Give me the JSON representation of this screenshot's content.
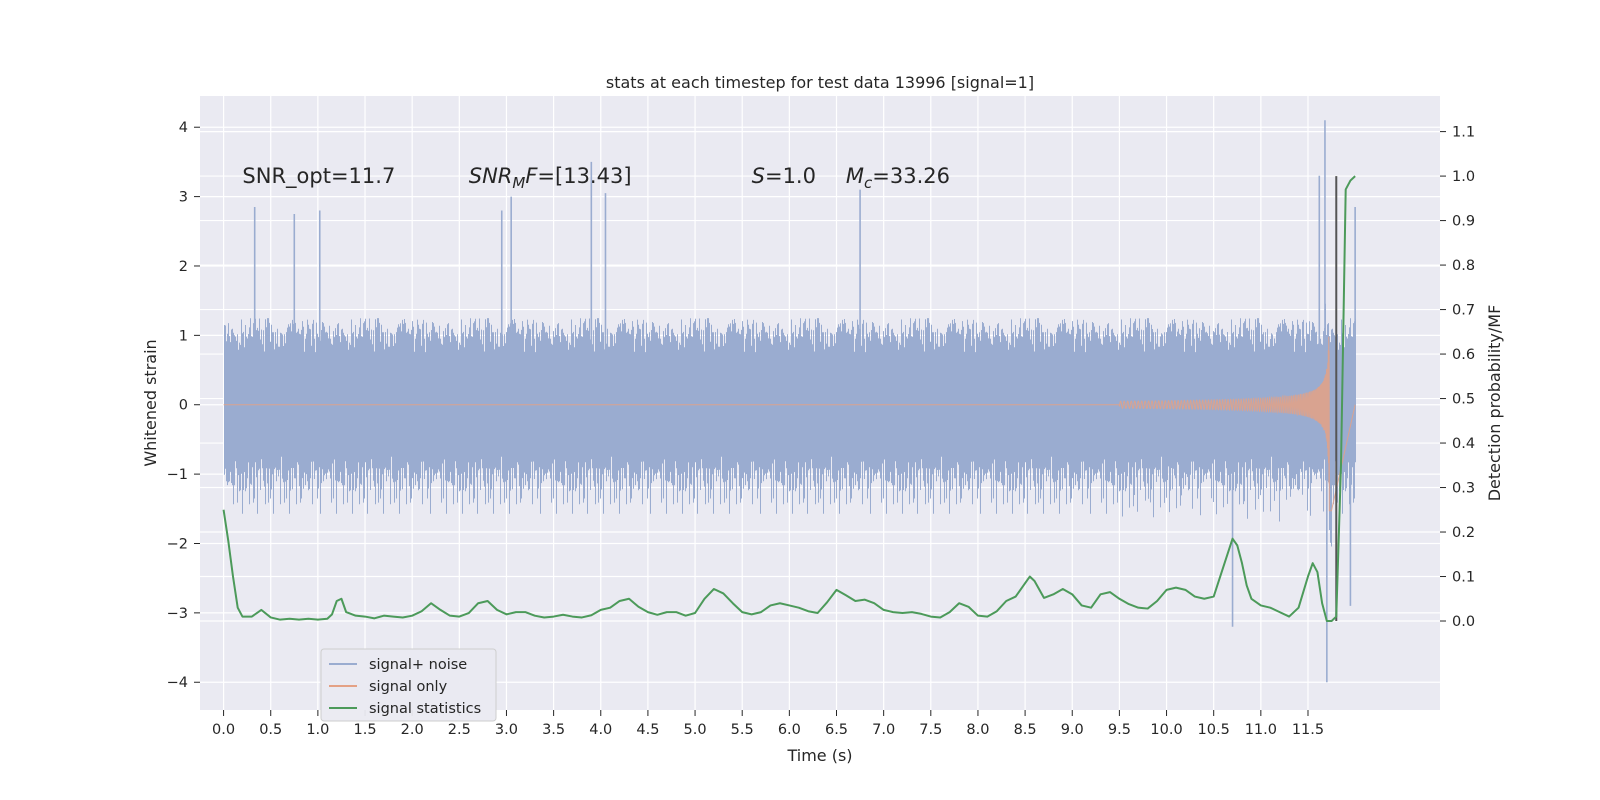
{
  "chart_data": {
    "type": "line",
    "title": "stats at each timestep for test data 13996 [signal=1]",
    "xlabel": "Time (s)",
    "ylabel_left": "Whitened strain",
    "ylabel_right": "Detection probability/MF",
    "xlim": [
      -0.25,
      12.9
    ],
    "ylim_left": [
      -4.4,
      4.45
    ],
    "ylim_right": [
      -0.2,
      1.18
    ],
    "xticks": [
      0.0,
      0.5,
      1.0,
      1.5,
      2.0,
      2.5,
      3.0,
      3.5,
      4.0,
      4.5,
      5.0,
      5.5,
      6.0,
      6.5,
      7.0,
      7.5,
      8.0,
      8.5,
      9.0,
      9.5,
      10.0,
      10.5,
      11.0,
      11.5
    ],
    "xtick_labels": [
      "0.0",
      "0.5",
      "1.0",
      "1.5",
      "2.0",
      "2.5",
      "3.0",
      "3.5",
      "4.0",
      "4.5",
      "5.0",
      "5.5",
      "6.0",
      "6.5",
      "7.0",
      "7.5",
      "8.0",
      "8.5",
      "9.0",
      "9.5",
      "10.0",
      "10.5",
      "11.0",
      "11.5"
    ],
    "yticks_left": [
      -4,
      -3,
      -2,
      -1,
      0,
      1,
      2,
      3,
      4
    ],
    "ytick_labels_left": [
      "−4",
      "−3",
      "−2",
      "−1",
      "0",
      "1",
      "2",
      "3",
      "4"
    ],
    "yticks_right": [
      0.0,
      0.1,
      0.2,
      0.3,
      0.4,
      0.5,
      0.6,
      0.7,
      0.8,
      0.9,
      1.0,
      1.1
    ],
    "ytick_labels_right": [
      "0.0",
      "0.1",
      "0.2",
      "0.3",
      "0.4",
      "0.5",
      "0.6",
      "0.7",
      "0.8",
      "0.9",
      "1.0",
      "1.1"
    ],
    "grid": true,
    "legend_position": "lower-left",
    "annotations": [
      {
        "text": "SNR_opt=11.7",
        "x": 0.2,
        "y": 3.3
      },
      {
        "text": "SNR_MF=[13.43]",
        "x": 2.6,
        "y": 3.3
      },
      {
        "text": "S=1.0",
        "x": 5.6,
        "y": 3.3
      },
      {
        "text": "M_c=33.26",
        "x": 6.6,
        "y": 3.3
      }
    ],
    "vertical_line": {
      "x": 11.8,
      "y_right": [
        0.0,
        1.0
      ],
      "color": "#555555"
    },
    "series": [
      {
        "name": "signal+ noise",
        "axis": "left",
        "color": "#9aacd0",
        "t_start": 0.0,
        "t_end": 12.0,
        "noise_sigma": 1.0,
        "envelope_positive_typical": 1.9,
        "envelope_negative_typical": -1.8,
        "spikes": [
          {
            "x": 0.33,
            "y": 2.85
          },
          {
            "x": 0.75,
            "y": 2.75
          },
          {
            "x": 1.02,
            "y": 2.8
          },
          {
            "x": 2.95,
            "y": 2.8
          },
          {
            "x": 3.05,
            "y": 3.0
          },
          {
            "x": 3.9,
            "y": 3.5
          },
          {
            "x": 4.05,
            "y": 3.05
          },
          {
            "x": 6.75,
            "y": 3.1
          },
          {
            "x": 10.7,
            "y": -3.2
          },
          {
            "x": 11.62,
            "y": 3.3
          },
          {
            "x": 11.68,
            "y": 4.1
          },
          {
            "x": 11.7,
            "y": -4.0
          },
          {
            "x": 11.95,
            "y": -2.9
          },
          {
            "x": 12.0,
            "y": 2.85
          }
        ]
      },
      {
        "name": "signal only",
        "axis": "left",
        "color": "#e4a185",
        "chirp_start": 9.5,
        "merger_time": 11.73,
        "peak_amplitude": 2.5
      },
      {
        "name": "signal statistics",
        "axis": "right",
        "color": "#4c9a5a",
        "x": [
          0.0,
          0.05,
          0.1,
          0.15,
          0.2,
          0.3,
          0.4,
          0.5,
          0.6,
          0.7,
          0.8,
          0.9,
          1.0,
          1.1,
          1.15,
          1.2,
          1.25,
          1.3,
          1.4,
          1.5,
          1.6,
          1.7,
          1.8,
          1.9,
          2.0,
          2.1,
          2.2,
          2.3,
          2.4,
          2.5,
          2.6,
          2.7,
          2.8,
          2.9,
          3.0,
          3.1,
          3.2,
          3.3,
          3.4,
          3.5,
          3.6,
          3.7,
          3.8,
          3.9,
          4.0,
          4.1,
          4.2,
          4.3,
          4.4,
          4.5,
          4.6,
          4.7,
          4.8,
          4.9,
          5.0,
          5.1,
          5.2,
          5.3,
          5.4,
          5.5,
          5.6,
          5.7,
          5.8,
          5.9,
          6.0,
          6.1,
          6.2,
          6.3,
          6.4,
          6.5,
          6.6,
          6.7,
          6.8,
          6.9,
          7.0,
          7.1,
          7.2,
          7.3,
          7.4,
          7.5,
          7.6,
          7.7,
          7.8,
          7.9,
          8.0,
          8.1,
          8.2,
          8.3,
          8.4,
          8.5,
          8.55,
          8.6,
          8.7,
          8.8,
          8.9,
          9.0,
          9.1,
          9.2,
          9.3,
          9.4,
          9.5,
          9.6,
          9.7,
          9.8,
          9.9,
          10.0,
          10.1,
          10.2,
          10.3,
          10.4,
          10.5,
          10.6,
          10.7,
          10.75,
          10.8,
          10.85,
          10.9,
          11.0,
          11.1,
          11.2,
          11.3,
          11.4,
          11.5,
          11.55,
          11.6,
          11.65,
          11.7,
          11.75,
          11.8,
          11.85,
          11.9,
          11.95,
          12.0
        ],
        "y": [
          0.25,
          0.18,
          0.1,
          0.03,
          0.01,
          0.01,
          0.025,
          0.008,
          0.003,
          0.005,
          0.003,
          0.005,
          0.003,
          0.005,
          0.015,
          0.045,
          0.05,
          0.02,
          0.012,
          0.01,
          0.006,
          0.012,
          0.01,
          0.008,
          0.012,
          0.022,
          0.04,
          0.025,
          0.012,
          0.01,
          0.018,
          0.04,
          0.045,
          0.025,
          0.015,
          0.02,
          0.02,
          0.012,
          0.008,
          0.01,
          0.014,
          0.01,
          0.008,
          0.013,
          0.025,
          0.03,
          0.045,
          0.05,
          0.032,
          0.02,
          0.014,
          0.02,
          0.02,
          0.012,
          0.018,
          0.05,
          0.072,
          0.062,
          0.04,
          0.02,
          0.015,
          0.02,
          0.035,
          0.04,
          0.035,
          0.03,
          0.022,
          0.018,
          0.042,
          0.07,
          0.058,
          0.045,
          0.048,
          0.04,
          0.025,
          0.02,
          0.018,
          0.02,
          0.016,
          0.01,
          0.008,
          0.02,
          0.04,
          0.032,
          0.012,
          0.01,
          0.022,
          0.045,
          0.055,
          0.085,
          0.1,
          0.09,
          0.052,
          0.06,
          0.072,
          0.06,
          0.035,
          0.03,
          0.06,
          0.065,
          0.05,
          0.038,
          0.03,
          0.028,
          0.045,
          0.07,
          0.075,
          0.07,
          0.055,
          0.05,
          0.055,
          0.12,
          0.185,
          0.17,
          0.13,
          0.08,
          0.05,
          0.035,
          0.03,
          0.02,
          0.01,
          0.03,
          0.1,
          0.13,
          0.11,
          0.04,
          0.0,
          0.0,
          0.01,
          0.35,
          0.97,
          0.99,
          1.0
        ]
      }
    ]
  }
}
